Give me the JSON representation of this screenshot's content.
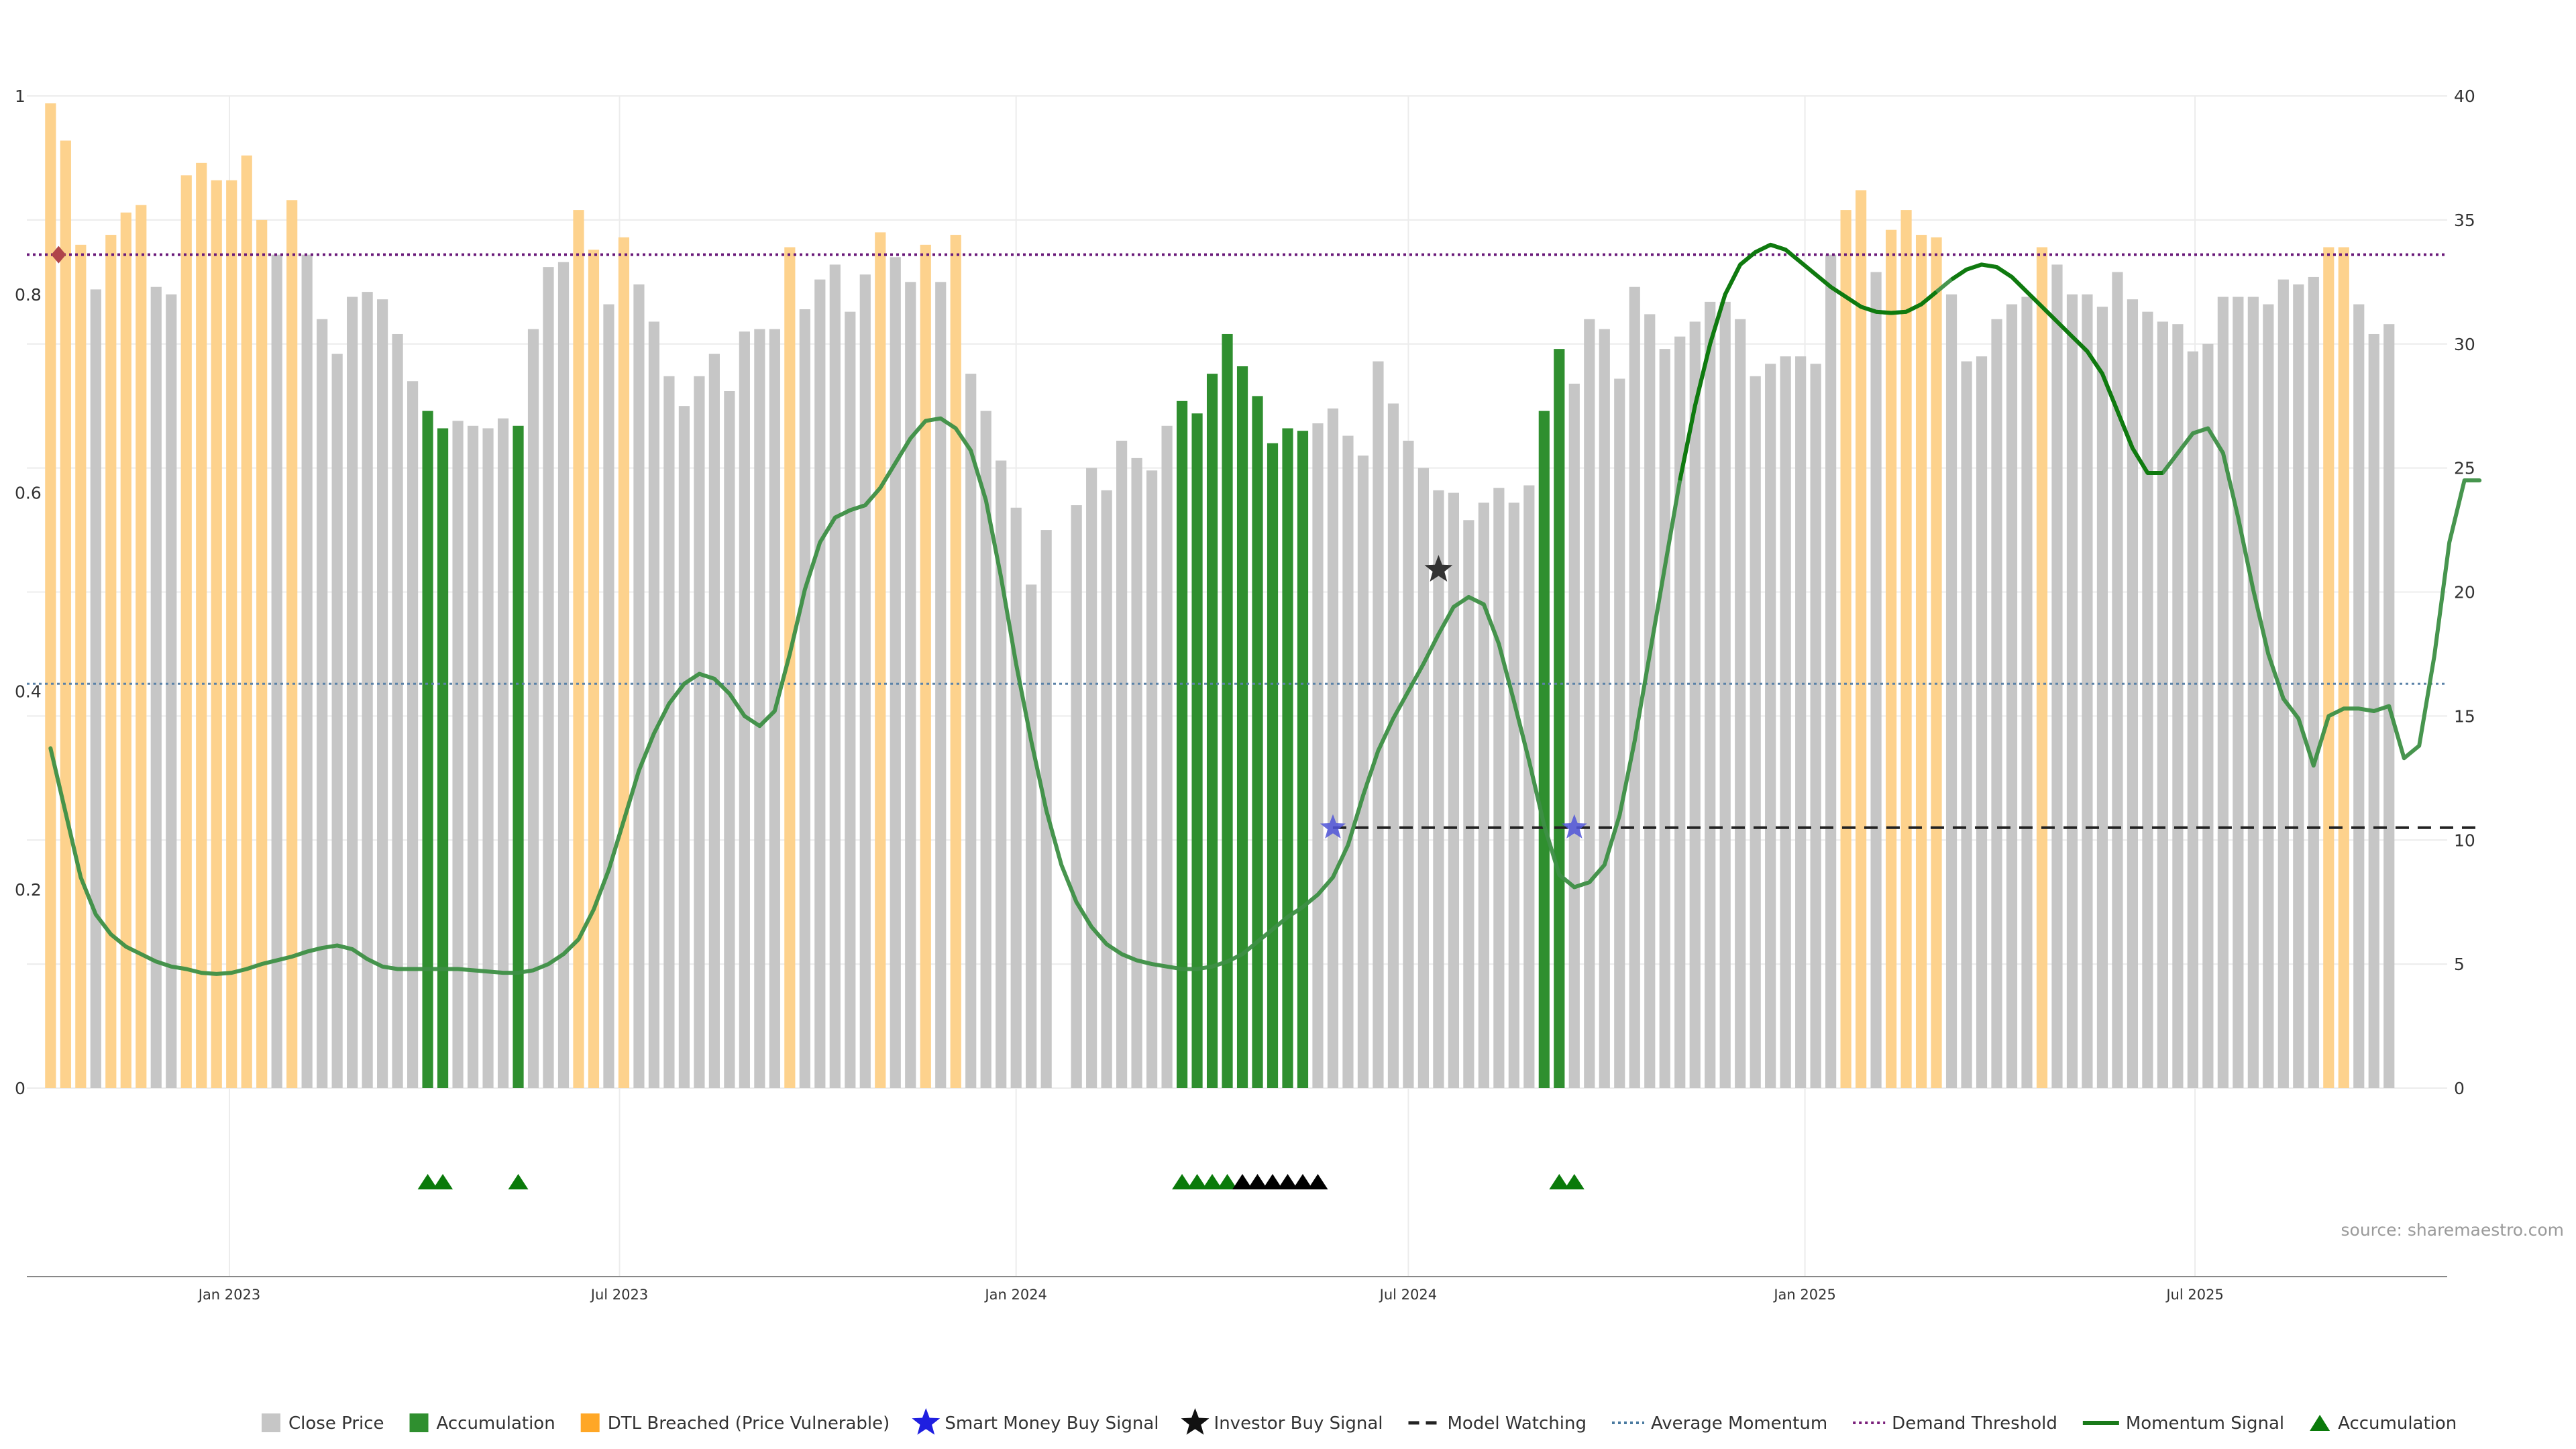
{
  "chart_data": {
    "type": "bar",
    "x_start": "2022-10-10",
    "x_step_days": 7,
    "xlim": [
      "2022-09-29",
      "2025-10-26"
    ],
    "x_ticks": [
      "Jan 2023",
      "Jul 2023",
      "Jan 2024",
      "Jul 2024",
      "Jan 2025",
      "Jul 2025"
    ],
    "x_tick_dates": [
      "2023-01-01",
      "2023-07-01",
      "2024-01-01",
      "2024-07-01",
      "2025-01-01",
      "2025-07-01"
    ],
    "left_axis": {
      "ylim": [
        0,
        1
      ],
      "ticks": [
        "0",
        "0.2",
        "0.4",
        "0.6",
        "0.8",
        "1"
      ],
      "tick_values": [
        0,
        0.2,
        0.4,
        0.6,
        0.8,
        1
      ]
    },
    "right_axis": {
      "ylim": [
        0,
        40
      ],
      "ticks": [
        "0",
        "5",
        "10",
        "15",
        "20",
        "25",
        "30",
        "35",
        "40"
      ],
      "tick_values": [
        0,
        5,
        10,
        15,
        20,
        25,
        30,
        35,
        40
      ]
    },
    "grid": true,
    "bars": [
      {
        "v": 39.7,
        "c": "dtl"
      },
      {
        "v": 38.2,
        "c": "dtl"
      },
      {
        "v": 34.0,
        "c": "dtl"
      },
      {
        "v": 32.2,
        "c": "close"
      },
      {
        "v": 34.4,
        "c": "dtl"
      },
      {
        "v": 35.3,
        "c": "dtl"
      },
      {
        "v": 35.6,
        "c": "dtl"
      },
      {
        "v": 32.3,
        "c": "close"
      },
      {
        "v": 32.0,
        "c": "close"
      },
      {
        "v": 36.8,
        "c": "dtl"
      },
      {
        "v": 37.3,
        "c": "dtl"
      },
      {
        "v": 36.6,
        "c": "dtl"
      },
      {
        "v": 36.6,
        "c": "dtl"
      },
      {
        "v": 37.6,
        "c": "dtl"
      },
      {
        "v": 35.0,
        "c": "dtl"
      },
      {
        "v": 33.6,
        "c": "close"
      },
      {
        "v": 35.8,
        "c": "dtl"
      },
      {
        "v": 33.6,
        "c": "close"
      },
      {
        "v": 31.0,
        "c": "close"
      },
      {
        "v": 29.6,
        "c": "close"
      },
      {
        "v": 31.9,
        "c": "close"
      },
      {
        "v": 32.1,
        "c": "close"
      },
      {
        "v": 31.8,
        "c": "close"
      },
      {
        "v": 30.4,
        "c": "close"
      },
      {
        "v": 28.5,
        "c": "close"
      },
      {
        "v": 27.3,
        "c": "acc"
      },
      {
        "v": 26.6,
        "c": "acc"
      },
      {
        "v": 26.9,
        "c": "close"
      },
      {
        "v": 26.7,
        "c": "close"
      },
      {
        "v": 26.6,
        "c": "close"
      },
      {
        "v": 27.0,
        "c": "close"
      },
      {
        "v": 26.7,
        "c": "acc"
      },
      {
        "v": 30.6,
        "c": "close"
      },
      {
        "v": 33.1,
        "c": "close"
      },
      {
        "v": 33.3,
        "c": "close"
      },
      {
        "v": 35.4,
        "c": "dtl"
      },
      {
        "v": 33.8,
        "c": "dtl"
      },
      {
        "v": 31.6,
        "c": "close"
      },
      {
        "v": 34.3,
        "c": "dtl"
      },
      {
        "v": 32.4,
        "c": "close"
      },
      {
        "v": 30.9,
        "c": "close"
      },
      {
        "v": 28.7,
        "c": "close"
      },
      {
        "v": 27.5,
        "c": "close"
      },
      {
        "v": 28.7,
        "c": "close"
      },
      {
        "v": 29.6,
        "c": "close"
      },
      {
        "v": 28.1,
        "c": "close"
      },
      {
        "v": 30.5,
        "c": "close"
      },
      {
        "v": 30.6,
        "c": "close"
      },
      {
        "v": 30.6,
        "c": "close"
      },
      {
        "v": 33.9,
        "c": "dtl"
      },
      {
        "v": 31.4,
        "c": "close"
      },
      {
        "v": 32.6,
        "c": "close"
      },
      {
        "v": 33.2,
        "c": "close"
      },
      {
        "v": 31.3,
        "c": "close"
      },
      {
        "v": 32.8,
        "c": "close"
      },
      {
        "v": 34.5,
        "c": "dtl"
      },
      {
        "v": 33.5,
        "c": "close"
      },
      {
        "v": 32.5,
        "c": "close"
      },
      {
        "v": 34.0,
        "c": "dtl"
      },
      {
        "v": 32.5,
        "c": "close"
      },
      {
        "v": 34.4,
        "c": "dtl"
      },
      {
        "v": 28.8,
        "c": "close"
      },
      {
        "v": 27.3,
        "c": "close"
      },
      {
        "v": 25.3,
        "c": "close"
      },
      {
        "v": 23.4,
        "c": "close"
      },
      {
        "v": 20.3,
        "c": "close"
      },
      {
        "v": 22.5,
        "c": "close"
      },
      {
        "v": 0.0,
        "c": "close"
      },
      {
        "v": 23.5,
        "c": "close"
      },
      {
        "v": 25.0,
        "c": "close"
      },
      {
        "v": 24.1,
        "c": "close"
      },
      {
        "v": 26.1,
        "c": "close"
      },
      {
        "v": 25.4,
        "c": "close"
      },
      {
        "v": 24.9,
        "c": "close"
      },
      {
        "v": 26.7,
        "c": "close"
      },
      {
        "v": 27.7,
        "c": "acc"
      },
      {
        "v": 27.2,
        "c": "acc"
      },
      {
        "v": 28.8,
        "c": "acc"
      },
      {
        "v": 30.4,
        "c": "acc"
      },
      {
        "v": 29.1,
        "c": "acc"
      },
      {
        "v": 27.9,
        "c": "acc"
      },
      {
        "v": 26.0,
        "c": "acc"
      },
      {
        "v": 26.6,
        "c": "acc"
      },
      {
        "v": 26.5,
        "c": "acc"
      },
      {
        "v": 26.8,
        "c": "close"
      },
      {
        "v": 27.4,
        "c": "close"
      },
      {
        "v": 26.3,
        "c": "close"
      },
      {
        "v": 25.5,
        "c": "close"
      },
      {
        "v": 29.3,
        "c": "close"
      },
      {
        "v": 27.6,
        "c": "close"
      },
      {
        "v": 26.1,
        "c": "close"
      },
      {
        "v": 25.0,
        "c": "close"
      },
      {
        "v": 24.1,
        "c": "close"
      },
      {
        "v": 24.0,
        "c": "close"
      },
      {
        "v": 22.9,
        "c": "close"
      },
      {
        "v": 23.6,
        "c": "close"
      },
      {
        "v": 24.2,
        "c": "close"
      },
      {
        "v": 23.6,
        "c": "close"
      },
      {
        "v": 24.3,
        "c": "close"
      },
      {
        "v": 27.3,
        "c": "acc"
      },
      {
        "v": 29.8,
        "c": "acc"
      },
      {
        "v": 28.4,
        "c": "close"
      },
      {
        "v": 31.0,
        "c": "close"
      },
      {
        "v": 30.6,
        "c": "close"
      },
      {
        "v": 28.6,
        "c": "close"
      },
      {
        "v": 32.3,
        "c": "close"
      },
      {
        "v": 31.2,
        "c": "close"
      },
      {
        "v": 29.8,
        "c": "close"
      },
      {
        "v": 30.3,
        "c": "close"
      },
      {
        "v": 30.9,
        "c": "close"
      },
      {
        "v": 31.7,
        "c": "close"
      },
      {
        "v": 31.7,
        "c": "close"
      },
      {
        "v": 31.0,
        "c": "close"
      },
      {
        "v": 28.7,
        "c": "close"
      },
      {
        "v": 29.2,
        "c": "close"
      },
      {
        "v": 29.5,
        "c": "close"
      },
      {
        "v": 29.5,
        "c": "close"
      },
      {
        "v": 29.2,
        "c": "close"
      },
      {
        "v": 33.6,
        "c": "close"
      },
      {
        "v": 35.4,
        "c": "dtl"
      },
      {
        "v": 36.2,
        "c": "dtl"
      },
      {
        "v": 32.9,
        "c": "close"
      },
      {
        "v": 34.6,
        "c": "dtl"
      },
      {
        "v": 35.4,
        "c": "dtl"
      },
      {
        "v": 34.4,
        "c": "dtl"
      },
      {
        "v": 34.3,
        "c": "dtl"
      },
      {
        "v": 32.0,
        "c": "close"
      },
      {
        "v": 29.3,
        "c": "close"
      },
      {
        "v": 29.5,
        "c": "close"
      },
      {
        "v": 31.0,
        "c": "close"
      },
      {
        "v": 31.6,
        "c": "close"
      },
      {
        "v": 31.9,
        "c": "close"
      },
      {
        "v": 33.9,
        "c": "dtl"
      },
      {
        "v": 33.2,
        "c": "close"
      },
      {
        "v": 32.0,
        "c": "close"
      },
      {
        "v": 32.0,
        "c": "close"
      },
      {
        "v": 31.5,
        "c": "close"
      },
      {
        "v": 32.9,
        "c": "close"
      },
      {
        "v": 31.8,
        "c": "close"
      },
      {
        "v": 31.3,
        "c": "close"
      },
      {
        "v": 30.9,
        "c": "close"
      },
      {
        "v": 30.8,
        "c": "close"
      },
      {
        "v": 29.7,
        "c": "close"
      },
      {
        "v": 30.0,
        "c": "close"
      },
      {
        "v": 31.9,
        "c": "close"
      },
      {
        "v": 31.9,
        "c": "close"
      },
      {
        "v": 31.9,
        "c": "close"
      },
      {
        "v": 31.6,
        "c": "close"
      },
      {
        "v": 32.6,
        "c": "close"
      },
      {
        "v": 32.4,
        "c": "close"
      },
      {
        "v": 32.7,
        "c": "close"
      },
      {
        "v": 33.9,
        "c": "dtl"
      },
      {
        "v": 33.9,
        "c": "dtl"
      },
      {
        "v": 31.6,
        "c": "close"
      },
      {
        "v": 30.4,
        "c": "close"
      },
      {
        "v": 30.8,
        "c": "close"
      }
    ],
    "momentum_signal": [
      [
        0,
        13.7
      ],
      [
        1,
        11.1
      ],
      [
        2,
        8.5
      ],
      [
        3,
        7.0
      ],
      [
        4,
        6.2
      ],
      [
        5,
        5.7
      ],
      [
        6,
        5.4
      ],
      [
        7,
        5.1
      ],
      [
        8,
        4.9
      ],
      [
        9,
        4.8
      ],
      [
        10,
        4.65
      ],
      [
        11,
        4.6
      ],
      [
        12,
        4.65
      ],
      [
        13,
        4.8
      ],
      [
        14,
        5.0
      ],
      [
        15,
        5.15
      ],
      [
        16,
        5.3
      ],
      [
        17,
        5.5
      ],
      [
        18,
        5.65
      ],
      [
        19,
        5.75
      ],
      [
        20,
        5.6
      ],
      [
        21,
        5.2
      ],
      [
        22,
        4.9
      ],
      [
        23,
        4.8
      ],
      [
        24,
        4.8
      ],
      [
        25,
        4.8
      ],
      [
        26,
        4.8
      ],
      [
        27,
        4.8
      ],
      [
        28,
        4.75
      ],
      [
        29,
        4.7
      ],
      [
        30,
        4.65
      ],
      [
        31,
        4.65
      ],
      [
        32,
        4.75
      ],
      [
        33,
        5.0
      ],
      [
        34,
        5.4
      ],
      [
        35,
        6.0
      ],
      [
        36,
        7.2
      ],
      [
        37,
        8.8
      ],
      [
        38,
        10.8
      ],
      [
        39,
        12.8
      ],
      [
        40,
        14.3
      ],
      [
        41,
        15.5
      ],
      [
        42,
        16.3
      ],
      [
        43,
        16.7
      ],
      [
        44,
        16.5
      ],
      [
        45,
        15.9
      ],
      [
        46,
        15.0
      ],
      [
        47,
        14.6
      ],
      [
        48,
        15.2
      ],
      [
        49,
        17.5
      ],
      [
        50,
        20.1
      ],
      [
        51,
        22.0
      ],
      [
        52,
        23.0
      ],
      [
        53,
        23.3
      ],
      [
        54,
        23.5
      ],
      [
        55,
        24.2
      ],
      [
        56,
        25.2
      ],
      [
        57,
        26.2
      ],
      [
        58,
        26.9
      ],
      [
        59,
        27.0
      ],
      [
        60,
        26.6
      ],
      [
        61,
        25.7
      ],
      [
        62,
        23.7
      ],
      [
        63,
        20.6
      ],
      [
        64,
        17.1
      ],
      [
        65,
        14.0
      ],
      [
        66,
        11.2
      ],
      [
        67,
        9.0
      ],
      [
        68,
        7.5
      ],
      [
        69,
        6.5
      ],
      [
        70,
        5.8
      ],
      [
        71,
        5.4
      ],
      [
        72,
        5.15
      ],
      [
        73,
        5.0
      ],
      [
        74,
        4.9
      ],
      [
        75,
        4.8
      ],
      [
        76,
        4.8
      ],
      [
        77,
        4.9
      ],
      [
        78,
        5.1
      ],
      [
        79,
        5.4
      ],
      [
        80,
        5.9
      ],
      [
        81,
        6.4
      ],
      [
        82,
        6.9
      ],
      [
        83,
        7.3
      ],
      [
        84,
        7.8
      ],
      [
        85,
        8.5
      ],
      [
        86,
        9.8
      ],
      [
        87,
        11.8
      ],
      [
        88,
        13.6
      ],
      [
        89,
        14.9
      ],
      [
        90,
        16.0
      ],
      [
        91,
        17.1
      ],
      [
        92,
        18.3
      ],
      [
        93,
        19.4
      ],
      [
        94,
        19.8
      ],
      [
        95,
        19.5
      ],
      [
        96,
        17.9
      ],
      [
        97,
        15.6
      ],
      [
        98,
        13.2
      ],
      [
        99,
        10.6
      ],
      [
        100,
        8.6
      ],
      [
        101,
        8.1
      ],
      [
        102,
        8.3
      ],
      [
        103,
        9.0
      ],
      [
        104,
        11.0
      ],
      [
        105,
        14.0
      ],
      [
        106,
        17.5
      ],
      [
        107,
        21.0
      ],
      [
        108,
        24.5
      ],
      [
        109,
        27.5
      ],
      [
        110,
        30.0
      ],
      [
        111,
        32.0
      ],
      [
        112,
        33.2
      ],
      [
        113,
        33.7
      ],
      [
        114,
        34.0
      ],
      [
        115,
        33.8
      ],
      [
        116,
        33.3
      ],
      [
        117,
        32.8
      ],
      [
        118,
        32.3
      ],
      [
        119,
        31.9
      ],
      [
        120,
        31.5
      ],
      [
        121,
        31.3
      ],
      [
        122,
        31.25
      ],
      [
        123,
        31.3
      ],
      [
        124,
        31.6
      ],
      [
        125,
        32.1
      ],
      [
        126,
        32.6
      ],
      [
        127,
        33.0
      ],
      [
        128,
        33.2
      ],
      [
        129,
        33.1
      ],
      [
        130,
        32.7
      ],
      [
        131,
        32.1
      ],
      [
        132,
        31.5
      ],
      [
        133,
        30.9
      ],
      [
        134,
        30.3
      ],
      [
        135,
        29.7
      ],
      [
        136,
        28.8
      ],
      [
        137,
        27.3
      ],
      [
        138,
        25.8
      ],
      [
        139,
        24.8
      ],
      [
        140,
        24.8
      ],
      [
        141,
        25.6
      ],
      [
        142,
        26.4
      ],
      [
        143,
        26.6
      ],
      [
        144,
        25.6
      ],
      [
        145,
        23.0
      ],
      [
        146,
        20.1
      ],
      [
        147,
        17.5
      ],
      [
        148,
        15.7
      ],
      [
        149,
        14.9
      ],
      [
        150,
        13.0
      ],
      [
        151,
        15.0
      ],
      [
        152,
        15.3
      ],
      [
        153,
        15.3
      ],
      [
        154,
        15.2
      ],
      [
        155,
        15.4
      ],
      [
        156,
        13.3
      ],
      [
        157,
        13.8
      ],
      [
        158,
        17.4
      ],
      [
        159,
        22.0
      ],
      [
        160,
        24.5
      ],
      [
        161,
        24.5
      ]
    ],
    "momentum_dark_segments": [
      [
        108,
        125
      ],
      [
        126,
        140
      ]
    ],
    "demand_threshold": 33.6,
    "average_momentum": 16.3,
    "model_watching": {
      "from": 85,
      "to": 161,
      "value": 10.5
    },
    "smart_money_buy_signals": [
      {
        "i": 85,
        "y": 10.5
      },
      {
        "i": 101,
        "y": 10.5
      }
    ],
    "investor_buy_signals": [
      {
        "i": 92,
        "y": 20.9
      }
    ],
    "threshold_marker": {
      "i": 0,
      "y": 33.6
    },
    "accumulation_markers": [
      {
        "i": 25,
        "c": "green"
      },
      {
        "i": 26,
        "c": "green"
      },
      {
        "i": 31,
        "c": "green"
      },
      {
        "i": 75,
        "c": "green"
      },
      {
        "i": 76,
        "c": "green"
      },
      {
        "i": 77,
        "c": "green"
      },
      {
        "i": 78,
        "c": "green"
      },
      {
        "i": 79,
        "c": "black"
      },
      {
        "i": 80,
        "c": "black"
      },
      {
        "i": 81,
        "c": "black"
      },
      {
        "i": 82,
        "c": "black"
      },
      {
        "i": 83,
        "c": "black"
      },
      {
        "i": 84,
        "c": "black"
      },
      {
        "i": 100,
        "c": "green"
      },
      {
        "i": 101,
        "c": "green"
      }
    ],
    "legend": [
      {
        "label": "Close Price",
        "symbol": "square",
        "color": "#c6c6c6"
      },
      {
        "label": "Accumulation",
        "symbol": "square",
        "color": "#2f8f2f"
      },
      {
        "label": "DTL Breached (Price Vulnerable)",
        "symbol": "square",
        "color": "#ffa726"
      },
      {
        "label": "Smart Money Buy Signal",
        "symbol": "star",
        "color": "#1f1fe0"
      },
      {
        "label": "Investor Buy Signal",
        "symbol": "star",
        "color": "#111111"
      },
      {
        "label": "Model Watching",
        "symbol": "dash",
        "color": "#222222"
      },
      {
        "label": "Average Momentum",
        "symbol": "dot",
        "color": "#4a7aa0"
      },
      {
        "label": "Demand Threshold",
        "symbol": "dot",
        "color": "#7a1f7a"
      },
      {
        "label": "Momentum Signal",
        "symbol": "line",
        "color": "#1a7a1a"
      },
      {
        "label": "Accumulation",
        "symbol": "triangle",
        "color": "#0a7a0a"
      }
    ],
    "legend_position": "bottom-center"
  },
  "colors": {
    "close": "#c6c6c6",
    "acc": "#2f8f2f",
    "dtl": "#fdd28d",
    "momentum_light": "#3d8f45",
    "momentum_dark": "#0f7a0f",
    "threshold": "#6a1a7a",
    "average": "#5a82a8",
    "watch": "#222222",
    "grid": "#ececec",
    "axis": "#888888"
  },
  "source_text": "source: sharemaestro.com"
}
